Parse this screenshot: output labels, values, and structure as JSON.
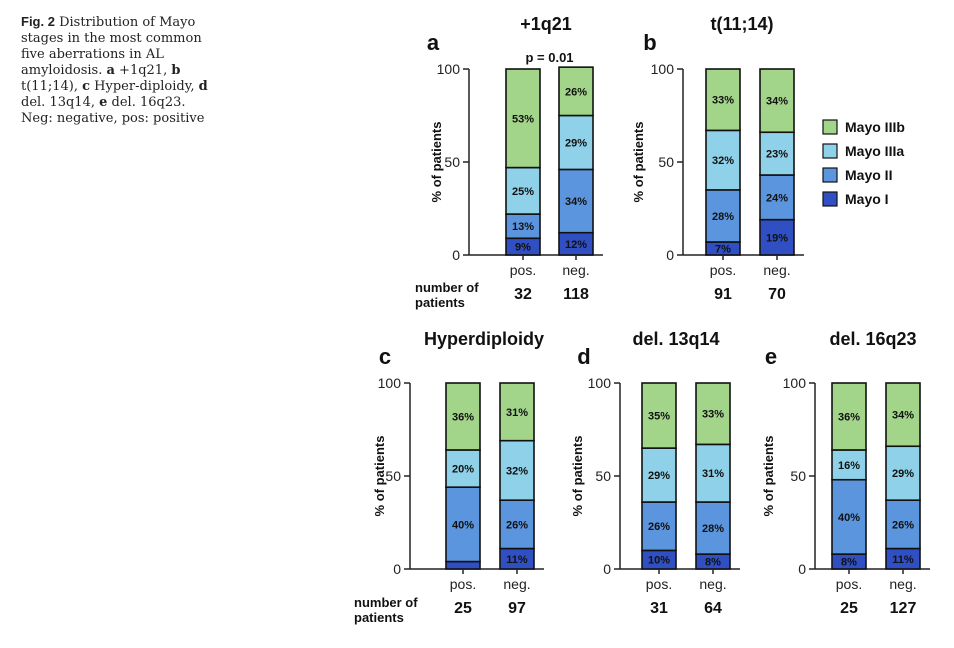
{
  "caption": {
    "fig_label": "Fig. 2",
    "text_1": " Distribution of Mayo stages in the most common five aberrations in AL amyloidosis. ",
    "a_letter": "a",
    "a_text": " +1q21, ",
    "b_letter": "b",
    "b_text": " t(11;14), ",
    "c_letter": "c",
    "c_text": " Hyper-diploidy, ",
    "d_letter": "d",
    "d_text": " del. 13q14, ",
    "e_letter": "e",
    "e_text": " del. 16q23. Neg: negative, pos: positive"
  },
  "number_of_patients_label": [
    "number of",
    "patients"
  ],
  "legend": [
    {
      "name": "Mayo IIIb",
      "color": "#a2d58a"
    },
    {
      "name": "Mayo IIIa",
      "color": "#8fd1e8"
    },
    {
      "name": "Mayo II",
      "color": "#5a95de"
    },
    {
      "name": "Mayo I",
      "color": "#2f4fc2"
    }
  ],
  "chart_data": [
    {
      "type": "bar",
      "stacked": true,
      "panel_letter": "a",
      "title": "+1q21",
      "annotation": "p = 0.01",
      "ylabel": "% of patients",
      "ylim": [
        0,
        100
      ],
      "yticks": [
        0,
        50,
        100
      ],
      "categories": [
        "pos.",
        "neg."
      ],
      "number_of_patients": [
        "32",
        "118"
      ],
      "series": [
        {
          "name": "Mayo I",
          "values": [
            9,
            12
          ],
          "labels": [
            "9%",
            "12%"
          ]
        },
        {
          "name": "Mayo II",
          "values": [
            13,
            34
          ],
          "labels": [
            "13%",
            "34%"
          ]
        },
        {
          "name": "Mayo IIIa",
          "values": [
            25,
            29
          ],
          "labels": [
            "25%",
            "29%"
          ]
        },
        {
          "name": "Mayo IIIb",
          "values": [
            53,
            26
          ],
          "labels": [
            "53%",
            "26%"
          ]
        }
      ]
    },
    {
      "type": "bar",
      "stacked": true,
      "panel_letter": "b",
      "title": "t(11;14)",
      "ylabel": "% of patients",
      "ylim": [
        0,
        100
      ],
      "yticks": [
        0,
        50,
        100
      ],
      "categories": [
        "pos.",
        "neg."
      ],
      "number_of_patients": [
        "91",
        "70"
      ],
      "series": [
        {
          "name": "Mayo I",
          "values": [
            7,
            19
          ],
          "labels": [
            "7%",
            "19%"
          ]
        },
        {
          "name": "Mayo II",
          "values": [
            28,
            24
          ],
          "labels": [
            "28%",
            "24%"
          ]
        },
        {
          "name": "Mayo IIIa",
          "values": [
            32,
            23
          ],
          "labels": [
            "32%",
            "23%"
          ]
        },
        {
          "name": "Mayo IIIb",
          "values": [
            33,
            34
          ],
          "labels": [
            "33%",
            "34%"
          ]
        }
      ]
    },
    {
      "type": "bar",
      "stacked": true,
      "panel_letter": "c",
      "title": "Hyperdiploidy",
      "ylabel": "% of patients",
      "ylim": [
        0,
        100
      ],
      "yticks": [
        0,
        50,
        100
      ],
      "categories": [
        "pos.",
        "neg."
      ],
      "number_of_patients": [
        "25",
        "97"
      ],
      "series": [
        {
          "name": "Mayo I",
          "values": [
            4,
            11
          ],
          "labels": [
            "",
            "11%"
          ]
        },
        {
          "name": "Mayo II",
          "values": [
            40,
            26
          ],
          "labels": [
            "40%",
            "26%"
          ]
        },
        {
          "name": "Mayo IIIa",
          "values": [
            20,
            32
          ],
          "labels": [
            "20%",
            "32%"
          ]
        },
        {
          "name": "Mayo IIIb",
          "values": [
            36,
            31
          ],
          "labels": [
            "36%",
            "31%"
          ]
        }
      ]
    },
    {
      "type": "bar",
      "stacked": true,
      "panel_letter": "d",
      "title": "del. 13q14",
      "ylabel": "% of patients",
      "ylim": [
        0,
        100
      ],
      "yticks": [
        0,
        50,
        100
      ],
      "categories": [
        "pos.",
        "neg."
      ],
      "number_of_patients": [
        "31",
        "64"
      ],
      "series": [
        {
          "name": "Mayo I",
          "values": [
            10,
            8
          ],
          "labels": [
            "10%",
            "8%"
          ]
        },
        {
          "name": "Mayo II",
          "values": [
            26,
            28
          ],
          "labels": [
            "26%",
            "28%"
          ]
        },
        {
          "name": "Mayo IIIa",
          "values": [
            29,
            31
          ],
          "labels": [
            "29%",
            "31%"
          ]
        },
        {
          "name": "Mayo IIIb",
          "values": [
            35,
            33
          ],
          "labels": [
            "35%",
            "33%"
          ]
        }
      ]
    },
    {
      "type": "bar",
      "stacked": true,
      "panel_letter": "e",
      "title": "del. 16q23",
      "ylabel": "% of patients",
      "ylim": [
        0,
        100
      ],
      "yticks": [
        0,
        50,
        100
      ],
      "categories": [
        "pos.",
        "neg."
      ],
      "number_of_patients": [
        "25",
        "127"
      ],
      "series": [
        {
          "name": "Mayo I",
          "values": [
            8,
            11
          ],
          "labels": [
            "8%",
            "11%"
          ]
        },
        {
          "name": "Mayo II",
          "values": [
            40,
            26
          ],
          "labels": [
            "40%",
            "26%"
          ]
        },
        {
          "name": "Mayo IIIa",
          "values": [
            16,
            29
          ],
          "labels": [
            "16%",
            "29%"
          ]
        },
        {
          "name": "Mayo IIIb",
          "values": [
            36,
            34
          ],
          "labels": [
            "36%",
            "34%"
          ]
        }
      ]
    }
  ]
}
